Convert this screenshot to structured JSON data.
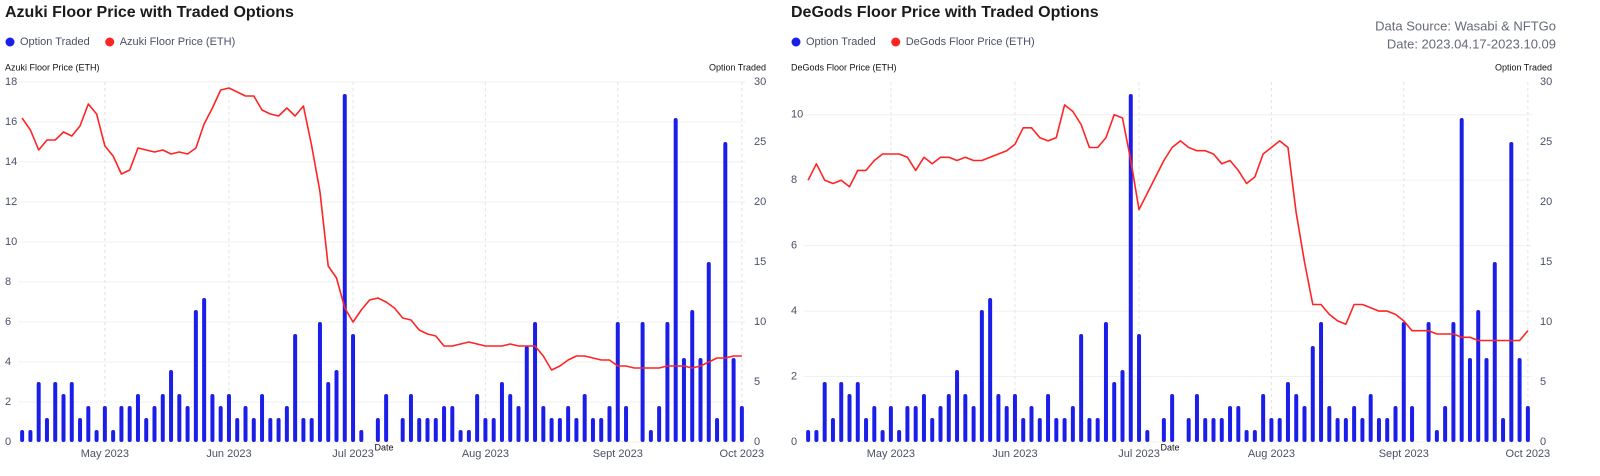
{
  "chart_data": [
    {
      "type": "combo",
      "title": "Azuki Floor Price with Traded Options",
      "ylabel": "Azuki Floor Price (ETH)",
      "y2label": "Option Traded",
      "xlabel": "Date",
      "categories": [
        null,
        null,
        null,
        null,
        null,
        null,
        null,
        null,
        null,
        null,
        "May 2023",
        null,
        null,
        null,
        null,
        null,
        null,
        null,
        null,
        null,
        null,
        null,
        null,
        null,
        null,
        "Jun 2023",
        null,
        null,
        null,
        null,
        null,
        null,
        null,
        null,
        null,
        null,
        null,
        null,
        null,
        null,
        "Jul 2023",
        null,
        null,
        null,
        null,
        null,
        null,
        null,
        null,
        null,
        null,
        null,
        null,
        null,
        null,
        null,
        "Aug 2023",
        null,
        null,
        null,
        null,
        null,
        null,
        null,
        null,
        null,
        null,
        null,
        null,
        null,
        null,
        null,
        "Sept 2023",
        null,
        null,
        null,
        null,
        null,
        null,
        null,
        null,
        null,
        null,
        null,
        null,
        null,
        null,
        "Oct 2023"
      ],
      "series": [
        {
          "name": "Option Traded",
          "color": "#1b1ee8",
          "kind": "bar",
          "axis": "y2",
          "values": [
            1,
            1,
            5,
            2,
            5,
            4,
            5,
            2,
            3,
            1,
            3,
            1,
            3,
            3,
            4,
            2,
            3,
            4,
            6,
            4,
            3,
            11,
            12,
            4,
            3,
            4,
            2,
            3,
            2,
            4,
            2,
            2,
            3,
            9,
            2,
            2,
            10,
            5,
            6,
            29,
            9,
            1,
            0,
            2,
            4,
            0,
            2,
            4,
            2,
            2,
            2,
            3,
            3,
            1,
            1,
            4,
            2,
            2,
            5,
            4,
            3,
            8,
            10,
            3,
            2,
            2,
            3,
            2,
            4,
            2,
            2,
            3,
            10,
            3,
            0,
            10,
            1,
            3,
            10,
            27,
            7,
            11,
            7,
            15,
            2,
            25,
            7,
            3
          ]
        },
        {
          "name": "Azuki Floor Price (ETH)",
          "color": "#ff2424",
          "kind": "line",
          "values": [
            16.2,
            15.6,
            14.6,
            15.1,
            15.1,
            15.5,
            15.3,
            15.8,
            16.9,
            16.4,
            14.8,
            14.3,
            13.4,
            13.6,
            14.7,
            14.6,
            14.5,
            14.6,
            14.4,
            14.5,
            14.4,
            14.7,
            15.9,
            16.7,
            17.6,
            17.7,
            17.5,
            17.3,
            17.3,
            16.6,
            16.4,
            16.3,
            16.7,
            16.3,
            16.8,
            14.8,
            12.5,
            8.8,
            8.2,
            6.7,
            6.0,
            6.6,
            7.1,
            7.2,
            7.0,
            6.7,
            6.2,
            6.1,
            5.6,
            5.4,
            5.3,
            4.8,
            4.8,
            4.9,
            5.0,
            4.9,
            4.8,
            4.8,
            4.8,
            4.9,
            4.8,
            4.8,
            4.8,
            4.3,
            3.6,
            3.8,
            4.1,
            4.3,
            4.3,
            4.2,
            4.1,
            4.1,
            3.8,
            3.8,
            3.7,
            3.7,
            3.7,
            3.7,
            3.8,
            3.8,
            3.8,
            3.7,
            3.8,
            4.0,
            4.2,
            4.2,
            4.3,
            4.3
          ]
        }
      ],
      "ylim": [
        0,
        18
      ],
      "yticks": [
        0,
        2,
        4,
        6,
        8,
        10,
        12,
        14,
        16,
        18
      ],
      "y2lim": [
        0,
        30
      ],
      "y2ticks": [
        0,
        5,
        10,
        15,
        20,
        25,
        30
      ],
      "grid": true,
      "legend": "top-left"
    },
    {
      "type": "combo",
      "title": "DeGods Floor Price with Traded Options",
      "ylabel": "DeGods Floor Price (ETH)",
      "y2label": "Option Traded",
      "xlabel": "Date",
      "annotations": [
        "Data Source: Wasabi & NFTGo",
        "Date: 2023.04.17-2023.10.09"
      ],
      "categories": [
        null,
        null,
        null,
        null,
        null,
        null,
        null,
        null,
        null,
        null,
        "May 2023",
        null,
        null,
        null,
        null,
        null,
        null,
        null,
        null,
        null,
        null,
        null,
        null,
        null,
        null,
        "Jun 2023",
        null,
        null,
        null,
        null,
        null,
        null,
        null,
        null,
        null,
        null,
        null,
        null,
        null,
        null,
        "Jul 2023",
        null,
        null,
        null,
        null,
        null,
        null,
        null,
        null,
        null,
        null,
        null,
        null,
        null,
        null,
        null,
        "Aug 2023",
        null,
        null,
        null,
        null,
        null,
        null,
        null,
        null,
        null,
        null,
        null,
        null,
        null,
        null,
        null,
        "Sept 2023",
        null,
        null,
        null,
        null,
        null,
        null,
        null,
        null,
        null,
        null,
        null,
        null,
        null,
        null,
        "Oct 2023"
      ],
      "series": [
        {
          "name": "Option Traded",
          "color": "#1b1ee8",
          "kind": "bar",
          "axis": "y2",
          "values": [
            1,
            1,
            5,
            2,
            5,
            4,
            5,
            2,
            3,
            1,
            3,
            1,
            3,
            3,
            4,
            2,
            3,
            4,
            6,
            4,
            3,
            11,
            12,
            4,
            3,
            4,
            2,
            3,
            2,
            4,
            2,
            2,
            3,
            9,
            2,
            2,
            10,
            5,
            6,
            29,
            9,
            1,
            0,
            2,
            4,
            0,
            2,
            4,
            2,
            2,
            2,
            3,
            3,
            1,
            1,
            4,
            2,
            2,
            5,
            4,
            3,
            8,
            10,
            3,
            2,
            2,
            3,
            2,
            4,
            2,
            2,
            3,
            10,
            3,
            0,
            10,
            1,
            3,
            10,
            27,
            7,
            11,
            7,
            15,
            2,
            25,
            7,
            3
          ]
        },
        {
          "name": "DeGods Floor Price (ETH)",
          "color": "#ff2424",
          "kind": "line",
          "values": [
            8.0,
            8.5,
            8.0,
            7.9,
            8.0,
            7.8,
            8.3,
            8.3,
            8.6,
            8.8,
            8.8,
            8.8,
            8.7,
            8.3,
            8.7,
            8.5,
            8.7,
            8.7,
            8.6,
            8.7,
            8.6,
            8.6,
            8.7,
            8.8,
            8.9,
            9.1,
            9.6,
            9.6,
            9.3,
            9.2,
            9.3,
            10.3,
            10.1,
            9.7,
            9.0,
            9.0,
            9.3,
            10.0,
            9.9,
            8.6,
            7.1,
            7.6,
            8.1,
            8.6,
            9.0,
            9.2,
            9.0,
            8.9,
            8.9,
            8.8,
            8.5,
            8.6,
            8.3,
            7.9,
            8.1,
            8.8,
            9.0,
            9.2,
            9.0,
            7.0,
            5.5,
            4.2,
            4.2,
            3.9,
            3.7,
            3.6,
            4.2,
            4.2,
            4.1,
            4.0,
            4.0,
            3.9,
            3.7,
            3.4,
            3.4,
            3.4,
            3.3,
            3.3,
            3.3,
            3.2,
            3.2,
            3.1,
            3.1,
            3.1,
            3.1,
            3.1,
            3.1,
            3.4
          ]
        }
      ],
      "ylim": [
        0,
        11
      ],
      "yticks": [
        0,
        2,
        4,
        6,
        8,
        10
      ],
      "y2lim": [
        0,
        30
      ],
      "y2ticks": [
        0,
        5,
        10,
        15,
        20,
        25,
        30
      ],
      "grid": true,
      "legend": "top-left"
    }
  ]
}
